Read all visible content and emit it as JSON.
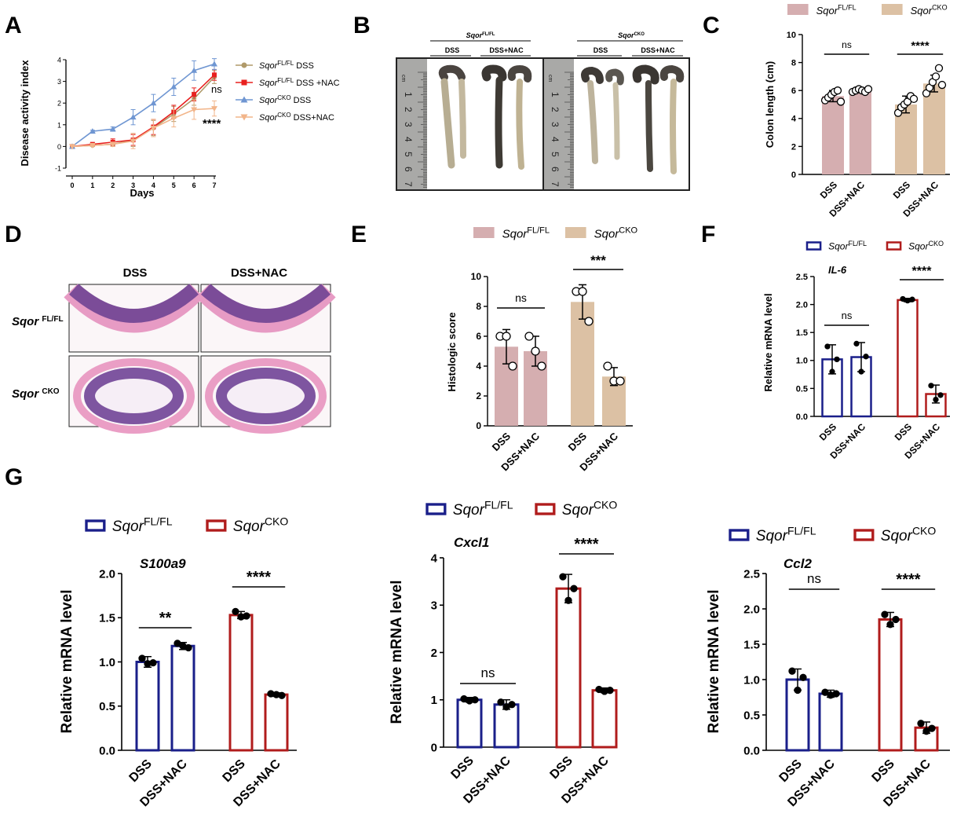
{
  "panels": {
    "A": "A",
    "B": "B",
    "C": "C",
    "D": "D",
    "E": "E",
    "F": "F",
    "G": "G"
  },
  "groups": {
    "fl": {
      "base": "Sqor",
      "sup": "FL/FL"
    },
    "cko": {
      "base": "Sqor",
      "sup": "CKO"
    }
  },
  "photo_b": {
    "header_fl": {
      "base": "Sqor",
      "sup": "FL/FL"
    },
    "header_cko": {
      "base": "Sqor",
      "sup": "CKO"
    },
    "dss": "DSS",
    "dss_nac": "DSS+NAC",
    "ruler_unit": "cm",
    "ruler_numbers": [
      "1",
      "2",
      "3",
      "4",
      "5",
      "6",
      "7"
    ]
  },
  "histology_d": {
    "col_dss": "DSS",
    "col_dss_nac": "DSS+NAC",
    "row_fl": {
      "base": "Sqor ",
      "sup": "FL/FL"
    },
    "row_cko": {
      "base": "Sqor ",
      "sup": "CKO"
    }
  },
  "colors": {
    "line_fl_dss": "#b09a6a",
    "line_fl_nac": "#e8201f",
    "line_cko_dss": "#6f96d2",
    "line_cko_nac": "#f2b58a",
    "bar_fl": "#d5aeb0",
    "bar_cko": "#dcc1a4",
    "outline_fl": "#1a1f8a",
    "outline_cko": "#b01c1c"
  },
  "chart_data": [
    {
      "panel": "A",
      "type": "line",
      "xlabel": "Days",
      "ylabel": "Disease activity index",
      "x": [
        0,
        1,
        2,
        3,
        4,
        5,
        6,
        7
      ],
      "xlim": [
        0,
        7
      ],
      "ylim": [
        -1,
        4
      ],
      "yticks": [
        -1,
        0,
        1,
        2,
        3,
        4
      ],
      "series": [
        {
          "name_base": "Sqor",
          "name_sup": "FL/FL",
          "name_tail": " DSS",
          "values": [
            0,
            0.05,
            0.1,
            0.3,
            0.85,
            1.5,
            2.2,
            3.2
          ],
          "errors": [
            0,
            0.05,
            0.1,
            0.3,
            0.35,
            0.35,
            0.3,
            0.3
          ]
        },
        {
          "name_base": "Sqor",
          "name_sup": "FL/FL",
          "name_tail": " DSS +NAC",
          "values": [
            0,
            0.1,
            0.2,
            0.3,
            0.9,
            1.6,
            2.4,
            3.3
          ],
          "errors": [
            0,
            0.05,
            0.15,
            0.25,
            0.35,
            0.3,
            0.3,
            0.25
          ]
        },
        {
          "name_base": "Sqor",
          "name_sup": "CKO",
          "name_tail": " DSS",
          "values": [
            0,
            0.7,
            0.8,
            1.35,
            2.0,
            2.75,
            3.5,
            3.8
          ],
          "errors": [
            0,
            0.05,
            0.1,
            0.35,
            0.4,
            0.4,
            0.45,
            0.25
          ]
        },
        {
          "name_base": "Sqor",
          "name_sup": "CKO",
          "name_tail": " DSS+NAC",
          "values": [
            0,
            0.05,
            0.1,
            0.25,
            0.85,
            1.3,
            1.7,
            1.75
          ],
          "errors": [
            0,
            0.05,
            0.1,
            0.35,
            0.4,
            0.4,
            0.45,
            0.35
          ]
        }
      ],
      "annotations": [
        "ns",
        "****"
      ]
    },
    {
      "panel": "C",
      "type": "bar",
      "ylabel": "Colon length (cm)",
      "ylim": [
        0,
        10
      ],
      "yticks": [
        0,
        2,
        4,
        6,
        8,
        10
      ],
      "categories": [
        "DSS",
        "DSS+NAC",
        "DSS",
        "DSS+NAC"
      ],
      "groups": [
        "FL/FL",
        "FL/FL",
        "CKO",
        "CKO"
      ],
      "values": [
        5.6,
        6.0,
        5.0,
        6.5
      ],
      "errors": [
        0.4,
        0.15,
        0.6,
        0.6
      ],
      "points": [
        [
          5.3,
          5.5,
          5.7,
          5.9,
          6.0,
          5.2
        ],
        [
          5.9,
          6.0,
          6.1,
          6.0,
          5.9,
          6.1
        ],
        [
          4.4,
          4.8,
          5.0,
          5.2,
          5.6,
          5.4
        ],
        [
          5.8,
          6.2,
          6.6,
          7.0,
          7.6,
          6.4
        ]
      ],
      "significance": [
        "ns",
        "****"
      ]
    },
    {
      "panel": "E",
      "type": "bar",
      "ylabel": "Histologic score",
      "ylim": [
        0,
        10
      ],
      "yticks": [
        0,
        2,
        4,
        6,
        8,
        10
      ],
      "categories": [
        "DSS",
        "DSS+NAC",
        "DSS",
        "DSS+NAC"
      ],
      "groups": [
        "FL/FL",
        "FL/FL",
        "CKO",
        "CKO"
      ],
      "values": [
        5.3,
        5.0,
        8.3,
        3.3
      ],
      "errors": [
        1.15,
        1.0,
        1.15,
        0.6
      ],
      "points": [
        [
          6,
          6,
          4
        ],
        [
          6,
          5,
          4
        ],
        [
          9,
          9,
          7
        ],
        [
          4,
          3,
          3
        ]
      ],
      "significance": [
        "ns",
        "***"
      ]
    },
    {
      "panel": "F",
      "type": "bar",
      "title": "IL-6",
      "ylabel": "Relative mRNA level",
      "ylim": [
        0,
        2.5
      ],
      "yticks": [
        0.0,
        0.5,
        1.0,
        1.5,
        2.0,
        2.5
      ],
      "categories": [
        "DSS",
        "DSS+NAC",
        "DSS",
        "DSS+NAC"
      ],
      "groups": [
        "FL/FL",
        "FL/FL",
        "CKO",
        "CKO"
      ],
      "values": [
        1.02,
        1.06,
        2.08,
        0.4
      ],
      "errors": [
        0.26,
        0.26,
        0.03,
        0.16
      ],
      "points": [
        [
          1.25,
          0.8,
          1.02
        ],
        [
          1.3,
          0.8,
          1.07
        ],
        [
          2.1,
          2.07,
          2.09
        ],
        [
          0.55,
          0.3,
          0.38
        ]
      ],
      "significance": [
        "ns",
        "****"
      ]
    },
    {
      "panel": "G1",
      "type": "bar",
      "title": "S100a9",
      "ylabel": "Relative mRNA level",
      "ylim": [
        0,
        2.0
      ],
      "yticks": [
        0.0,
        0.5,
        1.0,
        1.5,
        2.0
      ],
      "categories": [
        "DSS",
        "DSS+NAC",
        "DSS",
        "DSS+NAC"
      ],
      "groups": [
        "FL/FL",
        "FL/FL",
        "CKO",
        "CKO"
      ],
      "values": [
        1.0,
        1.18,
        1.53,
        0.63
      ],
      "errors": [
        0.06,
        0.04,
        0.04,
        0.02
      ],
      "points": [
        [
          1.04,
          0.98,
          0.99
        ],
        [
          1.21,
          1.18,
          1.16
        ],
        [
          1.57,
          1.51,
          1.52
        ],
        [
          0.64,
          0.63,
          0.62
        ]
      ],
      "significance": [
        "**",
        "****"
      ]
    },
    {
      "panel": "G2",
      "type": "bar",
      "title": "Cxcl1",
      "ylabel": "Relative mRNA level",
      "ylim": [
        0,
        4
      ],
      "yticks": [
        0,
        1,
        2,
        3,
        4
      ],
      "categories": [
        "DSS",
        "DSS+NAC",
        "DSS",
        "DSS+NAC"
      ],
      "groups": [
        "FL/FL",
        "FL/FL",
        "CKO",
        "CKO"
      ],
      "values": [
        1.0,
        0.9,
        3.35,
        1.2
      ],
      "errors": [
        0.05,
        0.1,
        0.3,
        0.05
      ],
      "points": [
        [
          1.02,
          0.98,
          1.0
        ],
        [
          0.95,
          0.85,
          0.9
        ],
        [
          3.6,
          3.1,
          3.35
        ],
        [
          1.22,
          1.18,
          1.2
        ]
      ],
      "significance": [
        "ns",
        "****"
      ]
    },
    {
      "panel": "G3",
      "type": "bar",
      "title": "Ccl2",
      "ylabel": "Relative mRNA level",
      "ylim": [
        0,
        2.5
      ],
      "yticks": [
        0.0,
        0.5,
        1.0,
        1.5,
        2.0,
        2.5
      ],
      "categories": [
        "DSS",
        "DSS+NAC",
        "DSS",
        "DSS+NAC"
      ],
      "groups": [
        "FL/FL",
        "FL/FL",
        "CKO",
        "CKO"
      ],
      "values": [
        1.0,
        0.8,
        1.85,
        0.32
      ],
      "errors": [
        0.15,
        0.05,
        0.1,
        0.08
      ],
      "points": [
        [
          1.12,
          0.85,
          1.03
        ],
        [
          0.82,
          0.78,
          0.8
        ],
        [
          1.92,
          1.78,
          1.85
        ],
        [
          0.38,
          0.27,
          0.31
        ]
      ],
      "significance": [
        "ns",
        "****"
      ]
    }
  ]
}
